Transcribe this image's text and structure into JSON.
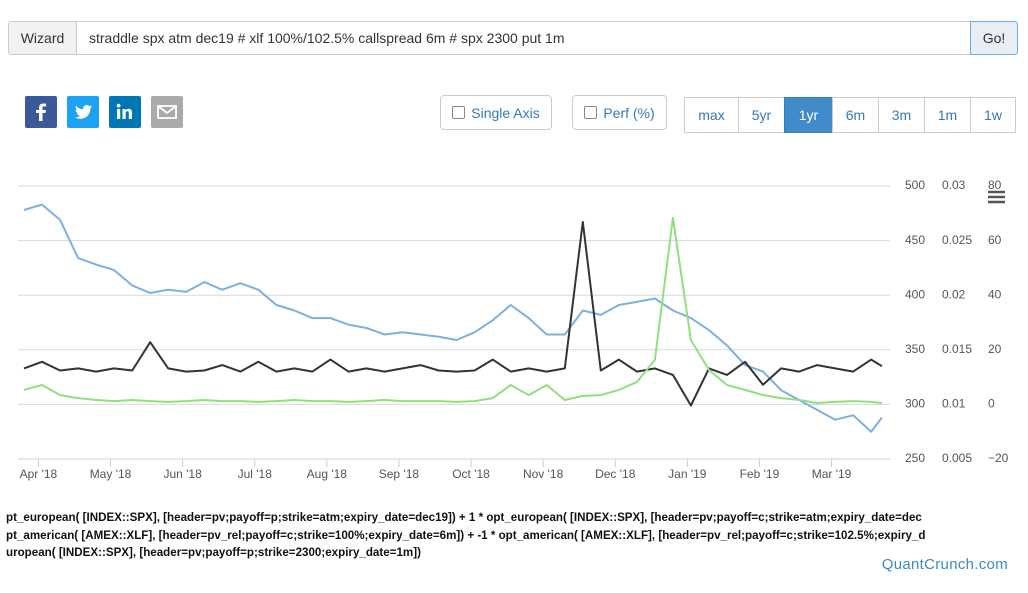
{
  "toolbar": {
    "wizard": "Wizard",
    "query": "straddle spx atm dec19  # xlf 100%/102.5% callspread 6m # spx 2300 put 1m",
    "go": "Go!"
  },
  "options": {
    "single_axis": "Single Axis",
    "perf": "Perf (%)",
    "ranges": [
      "max",
      "5yr",
      "1yr",
      "6m",
      "3m",
      "1m",
      "1w"
    ],
    "active_range": "1yr"
  },
  "chart_data": {
    "type": "line",
    "x": [
      -0.2,
      0.05,
      0.3,
      0.55,
      0.8,
      1.05,
      1.3,
      1.55,
      1.8,
      2.05,
      2.3,
      2.55,
      2.8,
      3.05,
      3.3,
      3.55,
      3.8,
      4.05,
      4.3,
      4.55,
      4.8,
      5.05,
      5.3,
      5.55,
      5.8,
      6.05,
      6.3,
      6.55,
      6.8,
      7.05,
      7.3,
      7.55,
      7.8,
      8.05,
      8.3,
      8.55,
      8.8,
      9.05,
      9.3,
      9.55,
      9.8,
      10.05,
      10.3,
      10.55,
      10.8,
      11.05,
      11.3,
      11.55,
      11.7
    ],
    "xlim": [
      -0.2,
      11.7
    ],
    "xticks": [
      {
        "value": 0,
        "label": "Apr '18"
      },
      {
        "value": 1,
        "label": "May '18"
      },
      {
        "value": 2,
        "label": "Jun '18"
      },
      {
        "value": 3,
        "label": "Jul '18"
      },
      {
        "value": 4,
        "label": "Aug '18"
      },
      {
        "value": 5,
        "label": "Sep '18"
      },
      {
        "value": 6,
        "label": "Oct '18"
      },
      {
        "value": 7,
        "label": "Nov '18"
      },
      {
        "value": 8,
        "label": "Dec '18"
      },
      {
        "value": 9,
        "label": "Jan '19"
      },
      {
        "value": 10,
        "label": "Feb '19"
      },
      {
        "value": 11,
        "label": "Mar '19"
      }
    ],
    "ylim": [
      250,
      500
    ],
    "yticks": [
      500,
      450,
      400,
      350,
      300,
      250
    ],
    "y2lim": [
      0.005,
      0.03
    ],
    "y2ticks": [
      0.03,
      0.025,
      0.02,
      0.015,
      0.01,
      0.005
    ],
    "y3lim": [
      -20,
      80
    ],
    "y3ticks": [
      80,
      60,
      40,
      20,
      0,
      {
        "value": -20,
        "label": "−20"
      }
    ],
    "grid": true,
    "series": [
      {
        "color": "#7cb0df",
        "axis": "y",
        "values": [
          478,
          483,
          469,
          434,
          428,
          423,
          409,
          402,
          405,
          403,
          412,
          405,
          411,
          405,
          391,
          386,
          379,
          379,
          373,
          370,
          364,
          366,
          364,
          362,
          359,
          366,
          377,
          391,
          379,
          364,
          364,
          386,
          382,
          391,
          394,
          397,
          386,
          379,
          368,
          354,
          336,
          330,
          313,
          304,
          295,
          286,
          290,
          275,
          288
        ]
      },
      {
        "color": "#333333",
        "axis": "y2",
        "values": [
          0.0133,
          0.0139,
          0.0131,
          0.0133,
          0.013,
          0.0133,
          0.0131,
          0.0157,
          0.0133,
          0.013,
          0.0131,
          0.0136,
          0.013,
          0.0139,
          0.013,
          0.0133,
          0.013,
          0.0141,
          0.013,
          0.0133,
          0.013,
          0.0133,
          0.0136,
          0.0131,
          0.013,
          0.0131,
          0.0141,
          0.013,
          0.0133,
          0.013,
          0.0133,
          0.0267,
          0.0131,
          0.0141,
          0.013,
          0.0133,
          0.0127,
          0.0099,
          0.0133,
          0.0127,
          0.0139,
          0.0118,
          0.0133,
          0.013,
          0.0136,
          0.0133,
          0.013,
          0.0141,
          0.0135
        ]
      },
      {
        "color": "#90e07d",
        "axis": "y3",
        "values": [
          5.3,
          7.1,
          3.4,
          2.3,
          1.6,
          1.2,
          1.6,
          1.2,
          0.9,
          1.2,
          1.6,
          1.2,
          1.2,
          0.9,
          1.2,
          1.6,
          1.2,
          1.2,
          0.9,
          1.2,
          1.6,
          1.2,
          1.2,
          1.2,
          0.9,
          1.2,
          2.3,
          7.1,
          3.4,
          7.1,
          1.6,
          3.1,
          3.4,
          5.3,
          8.2,
          16.3,
          68.3,
          23.6,
          12.6,
          7.1,
          5.3,
          3.4,
          2.3,
          1.6,
          0.5,
          0.9,
          1.2,
          0.9,
          0.5
        ]
      }
    ]
  },
  "formula_lines": [
    "pt_european( [INDEX::SPX], [header=pv;payoff=p;strike=atm;expiry_date=dec19]) + 1 * opt_european( [INDEX::SPX], [header=pv;payoff=c;strike=atm;expiry_date=dec",
    "pt_american( [AMEX::XLF], [header=pv_rel;payoff=c;strike=100%;expiry_date=6m]) + -1 * opt_american( [AMEX::XLF], [header=pv_rel;payoff=c;strike=102.5%;expiry_d",
    "uropean( [INDEX::SPX], [header=pv;payoff=p;strike=2300;expiry_date=1m])"
  ],
  "brand": "QuantCrunch.com"
}
